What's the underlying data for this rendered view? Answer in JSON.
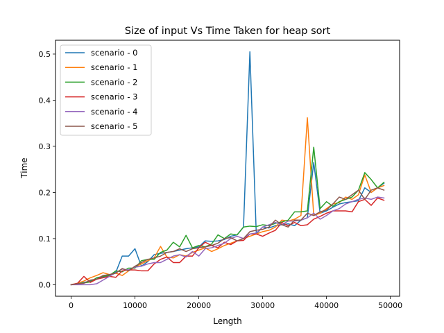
{
  "chart_data": {
    "type": "line",
    "title": "Size of input Vs Time Taken for heap sort",
    "xlabel": "Length",
    "ylabel": "Time",
    "xlim": [
      -2450,
      51450
    ],
    "ylim": [
      -0.025,
      0.53
    ],
    "xticks": [
      0,
      10000,
      20000,
      30000,
      40000,
      50000
    ],
    "xtick_labels": [
      "0",
      "10000",
      "20000",
      "30000",
      "40000",
      "50000"
    ],
    "yticks": [
      0.0,
      0.1,
      0.2,
      0.3,
      0.4,
      0.5
    ],
    "ytick_labels": [
      "0.0",
      "0.1",
      "0.2",
      "0.3",
      "0.4",
      "0.5"
    ],
    "grid": false,
    "legend_position": "upper-left",
    "x": [
      0,
      1000,
      2000,
      3000,
      4000,
      5000,
      6000,
      7000,
      8000,
      9000,
      10000,
      11000,
      12000,
      13000,
      14000,
      15000,
      16000,
      17000,
      18000,
      19000,
      20000,
      21000,
      22000,
      23000,
      24000,
      25000,
      26000,
      27000,
      28000,
      29000,
      30000,
      31000,
      32000,
      33000,
      34000,
      35000,
      36000,
      37000,
      38000,
      39000,
      40000,
      41000,
      42000,
      43000,
      44000,
      45000,
      46000,
      47000,
      48000,
      49000
    ],
    "series": [
      {
        "name": "scenario - 0",
        "color": "#1f77b4",
        "values": [
          0.0,
          0.002,
          0.005,
          0.008,
          0.012,
          0.016,
          0.02,
          0.027,
          0.062,
          0.062,
          0.078,
          0.04,
          0.05,
          0.065,
          0.068,
          0.07,
          0.072,
          0.075,
          0.078,
          0.08,
          0.082,
          0.095,
          0.094,
          0.095,
          0.098,
          0.105,
          0.108,
          0.125,
          0.505,
          0.11,
          0.125,
          0.123,
          0.128,
          0.13,
          0.132,
          0.128,
          0.14,
          0.145,
          0.265,
          0.155,
          0.16,
          0.168,
          0.175,
          0.178,
          0.18,
          0.182,
          0.21,
          0.2,
          0.21,
          0.22
        ]
      },
      {
        "name": "scenario - 1",
        "color": "#ff7f0e",
        "values": [
          0.0,
          0.003,
          0.008,
          0.015,
          0.02,
          0.026,
          0.022,
          0.025,
          0.02,
          0.03,
          0.038,
          0.045,
          0.052,
          0.058,
          0.083,
          0.06,
          0.058,
          0.065,
          0.062,
          0.07,
          0.075,
          0.08,
          0.072,
          0.078,
          0.085,
          0.09,
          0.095,
          0.1,
          0.105,
          0.11,
          0.115,
          0.118,
          0.125,
          0.14,
          0.138,
          0.142,
          0.15,
          0.362,
          0.15,
          0.155,
          0.165,
          0.175,
          0.178,
          0.19,
          0.185,
          0.195,
          0.238,
          0.2,
          0.21,
          0.215
        ]
      },
      {
        "name": "scenario - 2",
        "color": "#2ca02c",
        "values": [
          0.0,
          0.002,
          0.004,
          0.006,
          0.015,
          0.018,
          0.02,
          0.03,
          0.028,
          0.036,
          0.036,
          0.052,
          0.055,
          0.055,
          0.07,
          0.075,
          0.092,
          0.082,
          0.107,
          0.08,
          0.085,
          0.082,
          0.088,
          0.108,
          0.1,
          0.11,
          0.108,
          0.125,
          0.127,
          0.126,
          0.13,
          0.128,
          0.133,
          0.136,
          0.14,
          0.158,
          0.158,
          0.16,
          0.298,
          0.165,
          0.18,
          0.17,
          0.18,
          0.185,
          0.19,
          0.205,
          0.243,
          0.228,
          0.21,
          0.222
        ]
      },
      {
        "name": "scenario - 3",
        "color": "#d62728",
        "values": [
          0.0,
          0.003,
          0.018,
          0.005,
          0.012,
          0.015,
          0.018,
          0.016,
          0.03,
          0.032,
          0.032,
          0.03,
          0.03,
          0.045,
          0.055,
          0.06,
          0.048,
          0.048,
          0.062,
          0.062,
          0.08,
          0.092,
          0.085,
          0.08,
          0.092,
          0.087,
          0.095,
          0.096,
          0.11,
          0.11,
          0.105,
          0.112,
          0.118,
          0.135,
          0.128,
          0.135,
          0.128,
          0.13,
          0.142,
          0.148,
          0.155,
          0.16,
          0.16,
          0.16,
          0.158,
          0.18,
          0.185,
          0.172,
          0.188,
          0.183
        ]
      },
      {
        "name": "scenario - 4",
        "color": "#9467bd",
        "values": [
          0.0,
          0.0,
          0.0,
          0.0,
          0.002,
          0.01,
          0.018,
          0.026,
          0.034,
          0.032,
          0.038,
          0.04,
          0.045,
          0.048,
          0.048,
          0.055,
          0.062,
          0.065,
          0.06,
          0.072,
          0.062,
          0.078,
          0.08,
          0.085,
          0.09,
          0.1,
          0.105,
          0.1,
          0.11,
          0.112,
          0.125,
          0.13,
          0.135,
          0.13,
          0.138,
          0.138,
          0.14,
          0.145,
          0.155,
          0.142,
          0.15,
          0.16,
          0.165,
          0.175,
          0.18,
          0.185,
          0.188,
          0.185,
          0.19,
          0.188
        ]
      },
      {
        "name": "scenario - 5",
        "color": "#8c564b",
        "values": [
          0.0,
          0.002,
          0.003,
          0.01,
          0.012,
          0.02,
          0.022,
          0.025,
          0.035,
          0.03,
          0.04,
          0.048,
          0.055,
          0.058,
          0.062,
          0.07,
          0.072,
          0.078,
          0.072,
          0.078,
          0.08,
          0.082,
          0.085,
          0.09,
          0.1,
          0.102,
          0.095,
          0.1,
          0.115,
          0.118,
          0.12,
          0.125,
          0.14,
          0.13,
          0.125,
          0.14,
          0.14,
          0.155,
          0.15,
          0.158,
          0.162,
          0.175,
          0.19,
          0.185,
          0.195,
          0.205,
          0.185,
          0.205,
          0.21,
          0.205
        ]
      }
    ]
  }
}
